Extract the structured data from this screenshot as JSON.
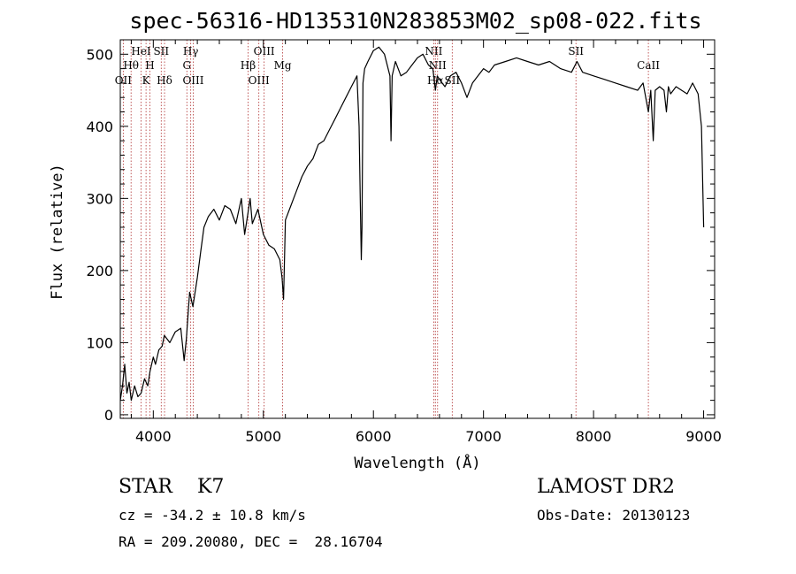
{
  "chart_data": {
    "type": "line",
    "title": "spec-56316-HD135310N283853M02_sp08-022.fits",
    "xlabel": "Wavelength (Å)",
    "ylabel": "Flux (relative)",
    "xlim": [
      3700,
      9100
    ],
    "ylim": [
      -5,
      520
    ],
    "xticks": [
      4000,
      5000,
      6000,
      7000,
      8000,
      9000
    ],
    "xtick_labels": [
      "4000",
      "5000",
      "6000",
      "7000",
      "8000",
      "9000"
    ],
    "yticks": [
      0,
      100,
      200,
      300,
      400,
      500
    ],
    "ytick_labels": [
      "0",
      "100",
      "200",
      "300",
      "400",
      "500"
    ],
    "grid": false,
    "series": [
      {
        "color": "#000000",
        "x": [
          3700,
          3720,
          3740,
          3760,
          3780,
          3800,
          3830,
          3860,
          3890,
          3920,
          3950,
          3970,
          4000,
          4020,
          4050,
          4080,
          4100,
          4150,
          4200,
          4250,
          4280,
          4300,
          4330,
          4360,
          4400,
          4430,
          4460,
          4500,
          4550,
          4600,
          4650,
          4700,
          4750,
          4800,
          4830,
          4860,
          4880,
          4900,
          4950,
          5000,
          5050,
          5100,
          5150,
          5170,
          5183,
          5200,
          5250,
          5300,
          5350,
          5400,
          5450,
          5500,
          5550,
          5600,
          5650,
          5700,
          5750,
          5800,
          5850,
          5870,
          5880,
          5890,
          5896,
          5905,
          5920,
          5950,
          6000,
          6050,
          6100,
          6150,
          6160,
          6170,
          6200,
          6250,
          6300,
          6350,
          6400,
          6450,
          6500,
          6540,
          6563,
          6580,
          6600,
          6650,
          6700,
          6750,
          6800,
          6850,
          6900,
          6950,
          7000,
          7050,
          7100,
          7200,
          7300,
          7400,
          7500,
          7600,
          7700,
          7800,
          7850,
          7900,
          8000,
          8100,
          8200,
          8300,
          8400,
          8450,
          8498,
          8520,
          8542,
          8560,
          8600,
          8640,
          8662,
          8680,
          8700,
          8750,
          8800,
          8850,
          8900,
          8950,
          8980,
          9000
        ],
        "values": [
          20,
          40,
          70,
          30,
          45,
          20,
          40,
          25,
          30,
          50,
          40,
          60,
          80,
          70,
          90,
          95,
          110,
          100,
          115,
          120,
          75,
          105,
          170,
          150,
          190,
          225,
          260,
          275,
          285,
          270,
          290,
          285,
          265,
          300,
          250,
          280,
          300,
          265,
          285,
          250,
          235,
          230,
          215,
          190,
          160,
          270,
          290,
          310,
          330,
          345,
          355,
          375,
          380,
          395,
          410,
          425,
          440,
          455,
          470,
          400,
          300,
          215,
          260,
          460,
          480,
          490,
          505,
          510,
          500,
          470,
          380,
          470,
          490,
          470,
          475,
          485,
          495,
          500,
          485,
          480,
          450,
          470,
          465,
          455,
          470,
          475,
          460,
          440,
          460,
          470,
          480,
          475,
          485,
          490,
          495,
          490,
          485,
          490,
          480,
          475,
          490,
          475,
          470,
          465,
          460,
          455,
          450,
          460,
          420,
          450,
          380,
          450,
          455,
          450,
          420,
          455,
          445,
          455,
          450,
          445,
          460,
          445,
          400,
          260
        ]
      }
    ],
    "line_markers": [
      {
        "label": "OII",
        "wavelength": 3727,
        "row": 3
      },
      {
        "label": "Hθ",
        "wavelength": 3798,
        "row": 2
      },
      {
        "label": "HeI",
        "wavelength": 3889,
        "row": 1
      },
      {
        "label": "K",
        "wavelength": 3934,
        "row": 3
      },
      {
        "label": "H",
        "wavelength": 3969,
        "row": 2
      },
      {
        "label": "SII",
        "wavelength": 4072,
        "row": 1
      },
      {
        "label": "Hδ",
        "wavelength": 4102,
        "row": 3
      },
      {
        "label": "Hγ",
        "wavelength": 4340,
        "row": 1
      },
      {
        "label": "G",
        "wavelength": 4305,
        "row": 2
      },
      {
        "label": "OIII",
        "wavelength": 4363,
        "row": 3
      },
      {
        "label": "Hβ",
        "wavelength": 4861,
        "row": 2
      },
      {
        "label": "OIII",
        "wavelength": 4959,
        "row": 3
      },
      {
        "label": "OIII",
        "wavelength": 5007,
        "row": 1
      },
      {
        "label": "Mg",
        "wavelength": 5175,
        "row": 2
      },
      {
        "label": "NII",
        "wavelength": 6548,
        "row": 1
      },
      {
        "label": "NII",
        "wavelength": 6583,
        "row": 2
      },
      {
        "label": "Hα",
        "wavelength": 6563,
        "row": 3
      },
      {
        "label": "SII",
        "wavelength": 6716,
        "row": 3
      },
      {
        "label": "SII",
        "wavelength": 7840,
        "row": 1
      },
      {
        "label": "CaII",
        "wavelength": 8498,
        "row": 2
      }
    ]
  },
  "info": {
    "class_label": "STAR    K7",
    "survey": "LAMOST DR2",
    "cz": "cz = -34.2 ± 10.8 km/s",
    "obs_date": "Obs-Date: 20130123",
    "coords": "RA = 209.20080, DEC =  28.16704"
  }
}
